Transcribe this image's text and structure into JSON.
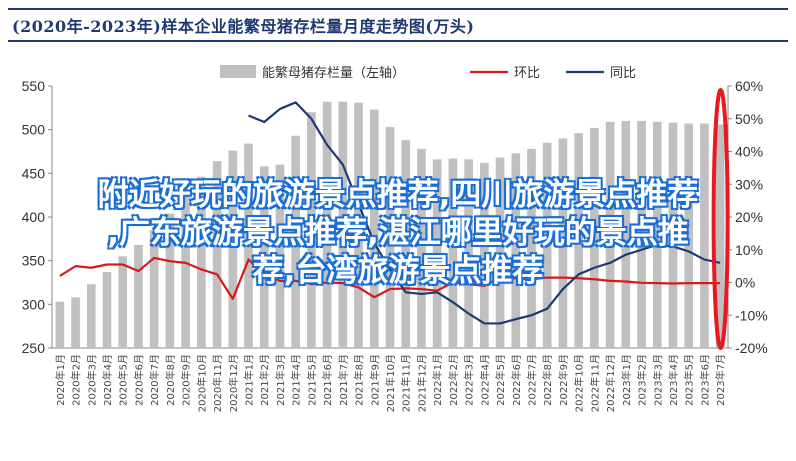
{
  "title": "(2020年-2023年)样本企业能繁母猪存栏量月度走势图(万头)",
  "overlay_lines": [
    "附近好玩的旅游景点推荐,四川旅游景点推荐",
    ",广东旅游景点推荐,湛江哪里好玩的景点推",
    "荐,台湾旅游景点推荐"
  ],
  "chart_data": {
    "type": "bar",
    "categories": [
      "2020年1月",
      "2020年2月",
      "2020年3月",
      "2020年4月",
      "2020年5月",
      "2020年6月",
      "2020年7月",
      "2020年8月",
      "2020年9月",
      "2020年10月",
      "2020年11月",
      "2020年12月",
      "2021年1月",
      "2021年2月",
      "2021年3月",
      "2021年4月",
      "2021年5月",
      "2021年6月",
      "2021年7月",
      "2021年8月",
      "2021年9月",
      "2021年10月",
      "2021年11月",
      "2021年12月",
      "2022年1月",
      "2022年2月",
      "2022年3月",
      "2022年4月",
      "2022年5月",
      "2022年6月",
      "2022年7月",
      "2022年8月",
      "2022年9月",
      "2022年10月",
      "2022年11月",
      "2022年12月",
      "2023年1月",
      "2023年2月",
      "2023年3月",
      "2023年4月",
      "2023年5月",
      "2023年6月",
      "2023年7月"
    ],
    "series": [
      {
        "name": "能繁母猪存栏量（左轴）",
        "type": "bar",
        "axis": "left",
        "color": "#c0c0c0",
        "values": [
          303,
          308,
          323,
          337,
          355,
          368,
          385,
          404,
          423,
          446,
          464,
          476,
          484,
          458,
          460,
          493,
          520,
          532,
          532,
          531,
          523,
          503,
          488,
          478,
          466,
          467,
          466,
          462,
          468,
          473,
          478,
          485,
          490,
          496,
          502,
          509,
          510,
          510,
          509,
          508,
          507,
          507,
          506
        ]
      },
      {
        "name": "环比",
        "type": "line",
        "axis": "right",
        "color": "#d7191c",
        "values": [
          2,
          5,
          4.5,
          5.5,
          5.5,
          3.5,
          7.5,
          6.5,
          6,
          4,
          2.5,
          -5,
          7,
          2.5,
          0.5,
          0.5,
          -0.5,
          0,
          -0.2,
          -1.5,
          -4.5,
          -2,
          -1.8,
          -2,
          -2.5,
          0,
          -0.5,
          -1,
          1.5,
          1.3,
          1,
          1.5,
          1.5,
          1.3,
          1,
          0.5,
          0.3,
          -0.1,
          -0.2,
          -0.3,
          -0.2,
          -0.2,
          -0.2
        ]
      },
      {
        "name": "同比",
        "type": "line",
        "axis": "right",
        "color": "#1f3a73",
        "values": [
          null,
          null,
          null,
          null,
          null,
          null,
          null,
          null,
          null,
          null,
          null,
          null,
          51,
          49,
          53,
          55,
          50,
          42,
          36,
          24,
          12,
          4,
          -3,
          -3.5,
          -3,
          -6,
          -9.5,
          -12.5,
          -12.5,
          -11.2,
          -10,
          -8,
          -2,
          2.5,
          4.5,
          6,
          8.5,
          10,
          11.5,
          11,
          9.5,
          7,
          6
        ]
      }
    ],
    "y_left": {
      "range": [
        250,
        550
      ],
      "ticks": [
        250,
        300,
        350,
        400,
        450,
        500,
        550
      ]
    },
    "y_right": {
      "range": [
        -20,
        60
      ],
      "ticks": [
        "-20%",
        "-10%",
        "0%",
        "10%",
        "20%",
        "30%",
        "40%",
        "50%",
        "60%"
      ]
    },
    "legend_position": "top-center",
    "grid": false,
    "highlight_ellipse_color": "#e8191f"
  }
}
